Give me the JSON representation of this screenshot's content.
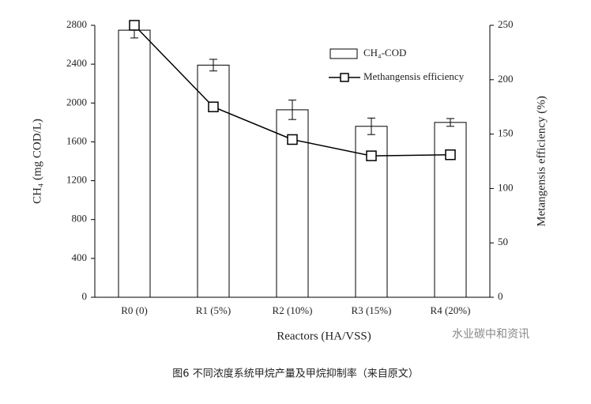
{
  "chart_data": {
    "type": "bar-line",
    "categories": [
      "R0 (0)",
      "R1 (5%)",
      "R2 (10%)",
      "R3 (15%)",
      "R4 (20%)"
    ],
    "series": [
      {
        "name": "CH₄-COD",
        "type": "bar",
        "color": "#ffffff",
        "values": [
          2750,
          2390,
          1930,
          1760,
          1800
        ],
        "errors": [
          80,
          60,
          100,
          85,
          40
        ]
      },
      {
        "name": "Methangensis efficiency",
        "type": "line",
        "axis": "y2",
        "color": "#000000",
        "values": [
          250,
          175,
          145,
          130,
          131
        ]
      }
    ],
    "xlabel": "Reactors (HA/VSS)",
    "ylabel": "CH₄ (mg COD/L)",
    "y2label": "Metangensis efficiency (%)",
    "ylim": [
      0,
      2800
    ],
    "yticks": [
      0,
      400,
      800,
      1200,
      1600,
      2000,
      2400,
      2800
    ],
    "y2lim": [
      0,
      250
    ],
    "y2ticks": [
      0,
      50,
      100,
      150,
      200,
      250
    ],
    "caption": "图6 不同浓度系统甲烷产量及甲烷抑制率（来自原文）",
    "watermark": "水业碳中和资讯"
  }
}
